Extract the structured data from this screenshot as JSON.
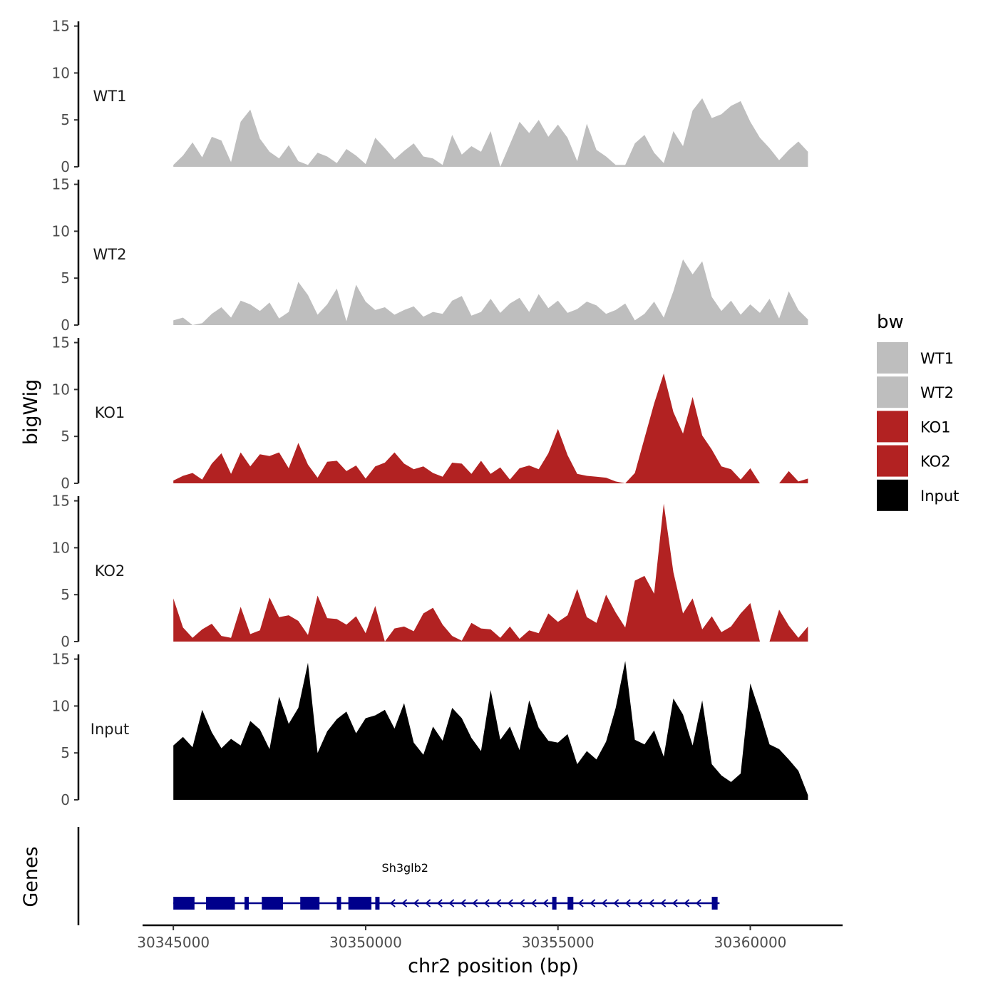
{
  "chart_data": {
    "type": "area",
    "y_title": "bigWig",
    "genes_title": "Genes",
    "x_title": "chr2 position (bp)",
    "x_range": [
      30344200,
      30362400
    ],
    "x_ticks": [
      30345000,
      30350000,
      30355000,
      30360000
    ],
    "x_tick_labels": [
      "30345000",
      "30350000",
      "30355000",
      "30360000"
    ],
    "y_ticks": [
      0,
      5,
      10,
      15
    ],
    "y_tick_labels": [
      "0",
      "5",
      "10",
      "15"
    ],
    "ylim": [
      0,
      15.5
    ],
    "legend": {
      "title": "bw",
      "position": "right",
      "entries": [
        {
          "label": "WT1",
          "color": "#bebebe"
        },
        {
          "label": "WT2",
          "color": "#bebebe"
        },
        {
          "label": "KO1",
          "color": "#b22222"
        },
        {
          "label": "KO2",
          "color": "#b22222"
        },
        {
          "label": "Input",
          "color": "#000000"
        }
      ]
    },
    "x": [
      30345000,
      30345250,
      30345500,
      30345750,
      30346000,
      30346250,
      30346500,
      30346750,
      30347000,
      30347250,
      30347500,
      30347750,
      30348000,
      30348250,
      30348500,
      30348750,
      30349000,
      30349250,
      30349500,
      30349750,
      30350000,
      30350250,
      30350500,
      30350750,
      30351000,
      30351250,
      30351500,
      30351750,
      30352000,
      30352250,
      30352500,
      30352750,
      30353000,
      30353250,
      30353500,
      30353750,
      30354000,
      30354250,
      30354500,
      30354750,
      30355000,
      30355250,
      30355500,
      30355750,
      30356000,
      30356250,
      30356500,
      30356750,
      30357000,
      30357250,
      30357500,
      30357750,
      30358000,
      30358250,
      30358500,
      30358750,
      30359000,
      30359250,
      30359500,
      30359750,
      30360000,
      30360250,
      30360500,
      30360750,
      30361000,
      30361250,
      30361500
    ],
    "series": [
      {
        "name": "WT1",
        "label": "WT1",
        "color": "#bebebe",
        "values": [
          0.2,
          1.2,
          2.6,
          1.0,
          3.2,
          2.8,
          0.5,
          4.8,
          6.1,
          3.0,
          1.6,
          0.9,
          2.3,
          0.6,
          0.2,
          1.5,
          1.1,
          0.4,
          1.9,
          1.2,
          0.3,
          3.1,
          2.0,
          0.8,
          1.7,
          2.5,
          1.1,
          0.9,
          0.2,
          3.4,
          1.3,
          2.2,
          1.6,
          3.8,
          0,
          2.4,
          4.8,
          3.6,
          5.0,
          3.2,
          4.5,
          3.1,
          0.6,
          4.6,
          1.8,
          1.1,
          0.2,
          0.2,
          2.5,
          3.4,
          1.5,
          0.4,
          3.8,
          2.2,
          6.0,
          7.3,
          5.2,
          5.6,
          6.5,
          7.0,
          4.8,
          3.1,
          2.0,
          0.7,
          1.8,
          2.7,
          1.6
        ]
      },
      {
        "name": "WT2",
        "label": "WT2",
        "color": "#bebebe",
        "values": [
          0.5,
          0.8,
          0,
          0.2,
          1.2,
          1.9,
          0.8,
          2.6,
          2.2,
          1.5,
          2.4,
          0.7,
          1.4,
          4.6,
          3.2,
          1.1,
          2.2,
          3.9,
          0.4,
          4.3,
          2.5,
          1.6,
          1.9,
          1.1,
          1.6,
          2.0,
          0.9,
          1.4,
          1.2,
          2.6,
          3.1,
          1.0,
          1.4,
          2.8,
          1.3,
          2.3,
          2.9,
          1.4,
          3.3,
          1.8,
          2.6,
          1.3,
          1.7,
          2.5,
          2.1,
          1.2,
          1.6,
          2.3,
          0.5,
          1.2,
          2.5,
          0.8,
          3.6,
          7.0,
          5.4,
          6.8,
          3.0,
          1.5,
          2.6,
          1.1,
          2.2,
          1.3,
          2.8,
          0.7,
          3.6,
          1.6,
          0.6
        ]
      },
      {
        "name": "KO1",
        "label": "KO1",
        "color": "#b22222",
        "values": [
          0.3,
          0.8,
          1.1,
          0.4,
          2.1,
          3.2,
          1.0,
          3.3,
          1.8,
          3.1,
          2.9,
          3.3,
          1.6,
          4.3,
          2.0,
          0.6,
          2.3,
          2.4,
          1.3,
          1.9,
          0.5,
          1.8,
          2.2,
          3.3,
          2.1,
          1.5,
          1.8,
          1.1,
          0.7,
          2.2,
          2.1,
          1.0,
          2.4,
          1.0,
          1.7,
          0.4,
          1.6,
          1.9,
          1.5,
          3.2,
          5.8,
          3.0,
          1.0,
          0.8,
          0.7,
          0.6,
          0.2,
          0,
          1.1,
          4.8,
          8.5,
          11.7,
          7.6,
          5.3,
          9.2,
          5.1,
          3.6,
          1.8,
          1.5,
          0.4,
          1.6,
          0,
          0,
          0,
          1.3,
          0.2,
          0.5
        ]
      },
      {
        "name": "KO2",
        "label": "KO2",
        "color": "#b22222",
        "values": [
          4.6,
          1.5,
          0.4,
          1.3,
          1.9,
          0.6,
          0.4,
          3.7,
          0.8,
          1.2,
          4.7,
          2.6,
          2.8,
          2.2,
          0.7,
          4.9,
          2.5,
          2.4,
          1.8,
          2.7,
          0.9,
          3.8,
          0,
          1.4,
          1.6,
          1.1,
          3.0,
          3.6,
          1.8,
          0.6,
          0.1,
          2.0,
          1.4,
          1.3,
          0.4,
          1.6,
          0.3,
          1.2,
          0.9,
          3.0,
          2.1,
          2.8,
          5.6,
          2.6,
          2.0,
          5.0,
          3.1,
          1.5,
          6.5,
          7.0,
          5.1,
          14.7,
          7.4,
          3.0,
          4.6,
          1.3,
          2.7,
          1.0,
          1.6,
          3.0,
          4.1,
          0,
          0,
          3.4,
          1.7,
          0.4,
          1.6
        ]
      },
      {
        "name": "Input",
        "label": "Input",
        "color": "#000000",
        "values": [
          5.8,
          6.7,
          5.6,
          9.6,
          7.2,
          5.5,
          6.5,
          5.8,
          8.4,
          7.5,
          5.4,
          11.0,
          8.1,
          9.8,
          14.6,
          5.0,
          7.3,
          8.6,
          9.4,
          7.1,
          8.7,
          9.0,
          9.6,
          7.6,
          10.3,
          6.1,
          4.8,
          7.8,
          6.3,
          9.8,
          8.7,
          6.6,
          5.2,
          11.7,
          6.4,
          7.8,
          5.3,
          10.6,
          7.7,
          6.3,
          6.1,
          7.0,
          3.8,
          5.2,
          4.3,
          6.2,
          9.8,
          14.8,
          6.4,
          5.9,
          7.4,
          4.6,
          10.8,
          9.1,
          5.8,
          10.6,
          3.8,
          2.6,
          1.9,
          2.8,
          12.4,
          9.3,
          5.9,
          5.4,
          4.3,
          3.1,
          0.5
        ]
      }
    ],
    "gene": {
      "name": "Sh3glb2",
      "strand": "-",
      "start": 30345000,
      "end": 30359200,
      "exons": [
        [
          30345000,
          30345550
        ],
        [
          30345850,
          30346600
        ],
        [
          30346850,
          30346950
        ],
        [
          30347300,
          30347850
        ],
        [
          30348300,
          30348800
        ],
        [
          30349250,
          30349330
        ],
        [
          30349550,
          30350150
        ],
        [
          30350250,
          30350350
        ],
        [
          30354850,
          30354950
        ],
        [
          30355250,
          30355400
        ],
        [
          30359000,
          30359150
        ]
      ],
      "color": "#00008b"
    }
  }
}
